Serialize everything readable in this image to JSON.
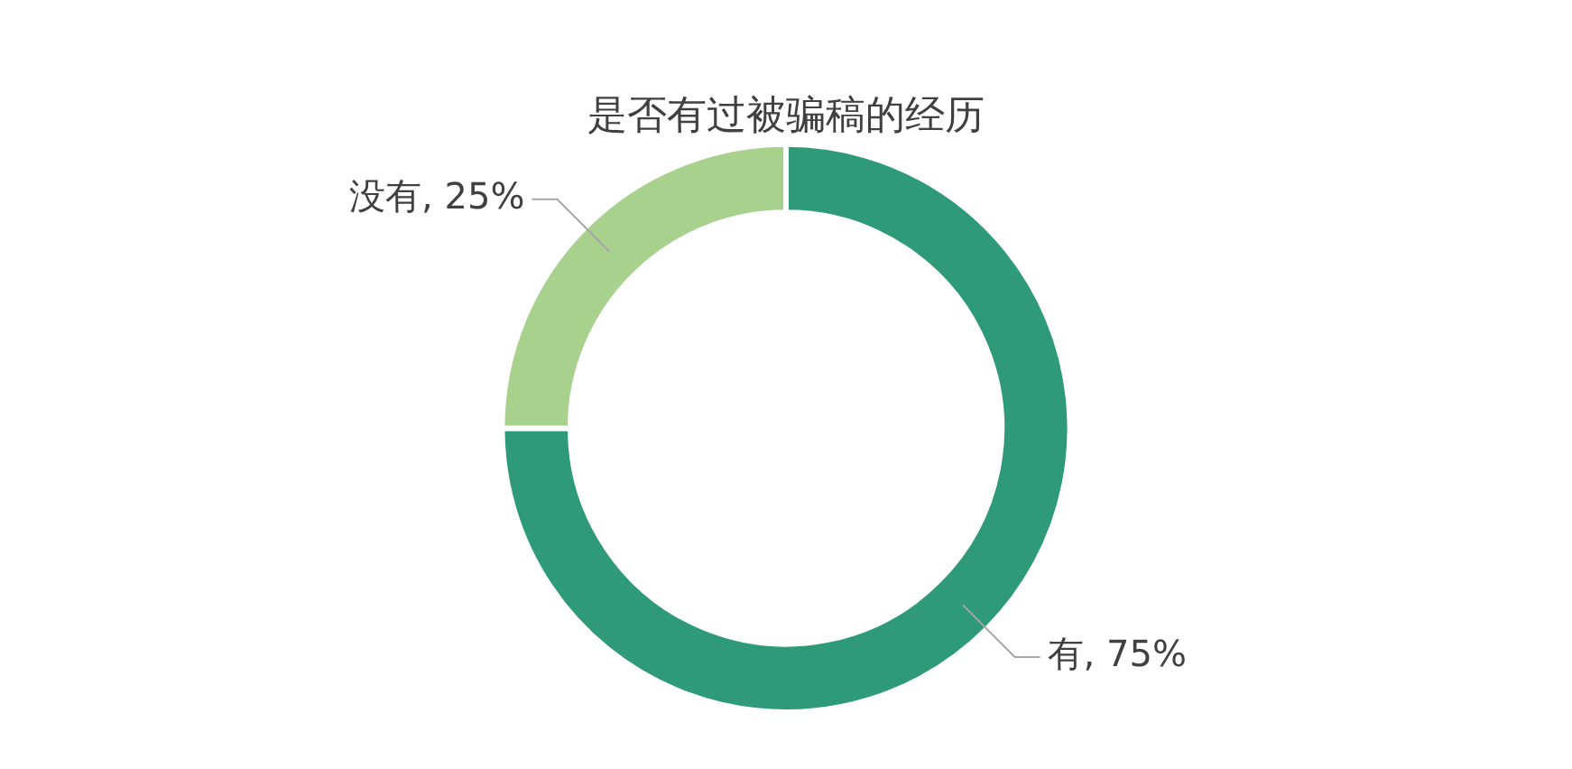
{
  "chart_data": {
    "type": "donut",
    "title": "是否有过被骗稿的经历",
    "categories": [
      "有",
      "没有"
    ],
    "values": [
      75,
      25
    ],
    "colors": [
      "#2e9a78",
      "#a8d18d"
    ],
    "value_labels": [
      "75%",
      "25%"
    ],
    "legend": false
  }
}
